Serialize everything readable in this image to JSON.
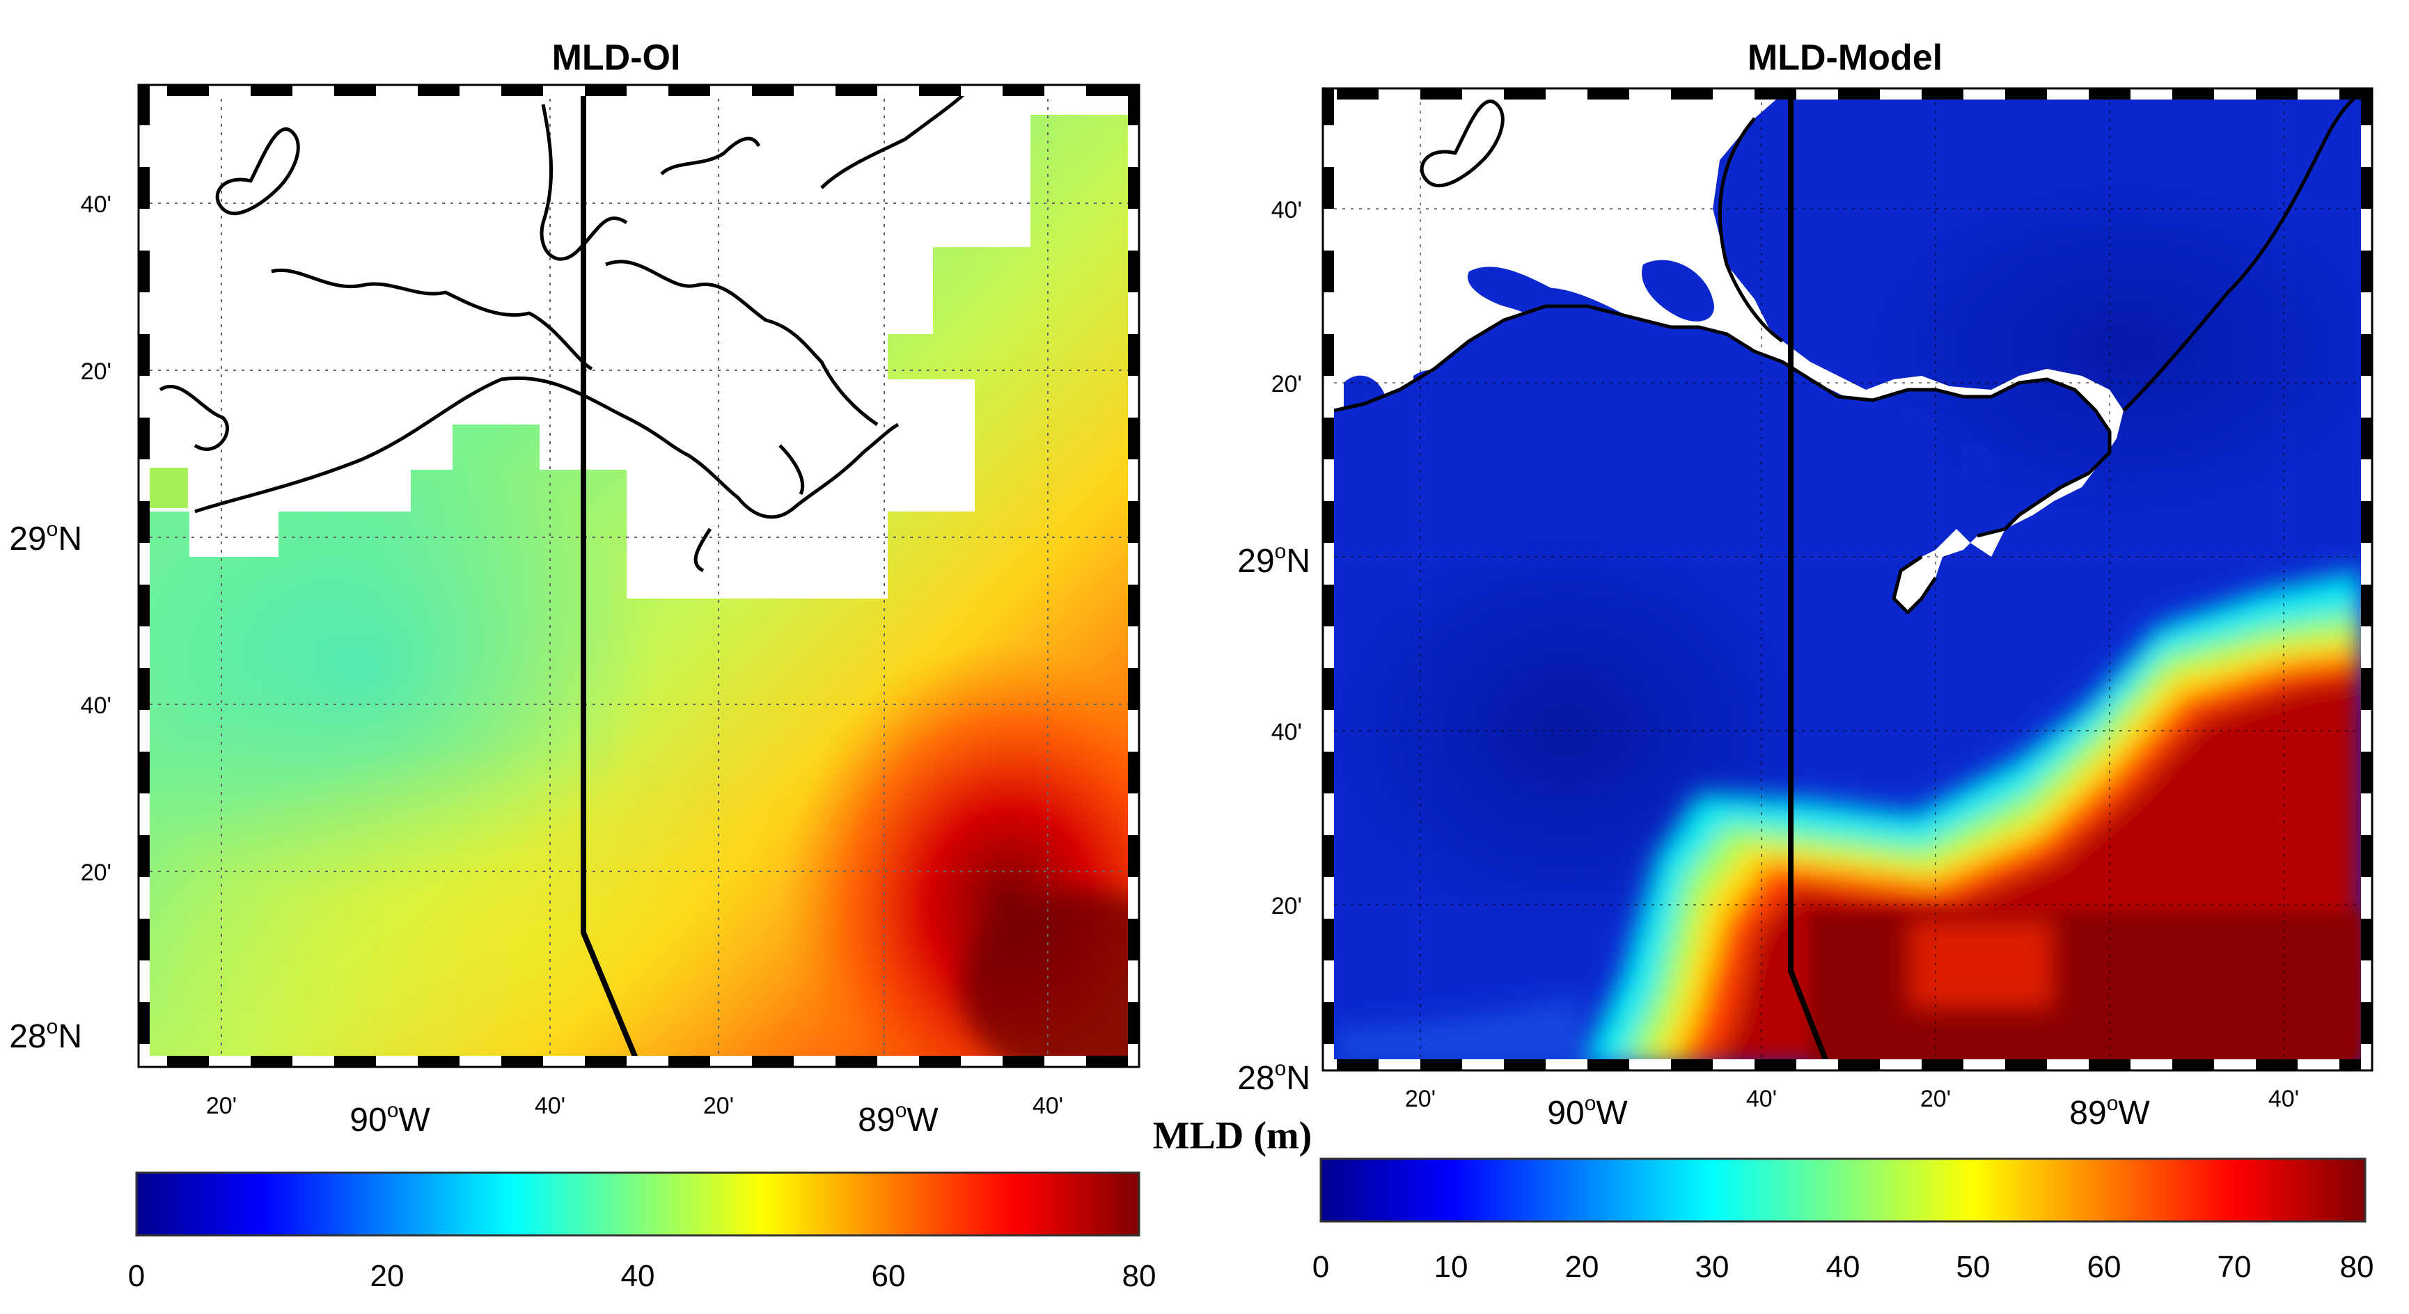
{
  "panels": [
    {
      "title": "MLD-OI",
      "lat_ticks": [
        "40'",
        "20'",
        "29°N",
        "40'",
        "20'",
        "28°N"
      ],
      "lon_ticks": [
        "20'",
        "90°W",
        "40'",
        "20'",
        "89°W",
        "40'"
      ],
      "colorbar_ticks": [
        "0",
        "20",
        "40",
        "60",
        "80"
      ]
    },
    {
      "title": "MLD-Model",
      "lat_ticks": [
        "40'",
        "20'",
        "29°N",
        "40'",
        "20'",
        "28°N"
      ],
      "lon_ticks": [
        "20'",
        "90°W",
        "40'",
        "20'",
        "89°W",
        "40'"
      ],
      "colorbar_ticks": [
        "0",
        "10",
        "20",
        "30",
        "40",
        "50",
        "60",
        "70",
        "80"
      ]
    }
  ],
  "colorbar_label": "MLD (m)",
  "colormap": "jet",
  "colors": {
    "land": "#ffffff",
    "coastline": "#000000",
    "section_line": "#000000",
    "jet_low": "#00008f",
    "jet_high": "#800000"
  },
  "labels": {
    "oi_title": "MLD-OI",
    "model_title": "MLD-Model",
    "unit": "MLD (m)",
    "oi_lat": [
      "40'",
      "20'",
      "29",
      "40'",
      "20'",
      "28"
    ],
    "oi_lon": [
      "20'",
      "90",
      "40'",
      "20'",
      "89",
      "40'"
    ],
    "model_lat": [
      "40'",
      "20'",
      "29",
      "40'",
      "20'",
      "28"
    ],
    "model_lon": [
      "20'",
      "90",
      "40'",
      "20'",
      "89",
      "40'"
    ],
    "oi_cb": [
      "0",
      "20",
      "40",
      "60",
      "80"
    ],
    "model_cb": [
      "0",
      "10",
      "20",
      "30",
      "40",
      "50",
      "60",
      "70",
      "80"
    ],
    "N": "N",
    "W": "W",
    "o": "o"
  }
}
